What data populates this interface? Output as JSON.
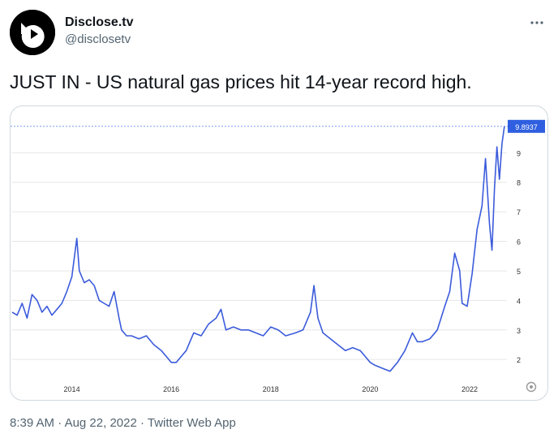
{
  "author": {
    "display_name": "Disclose.tv",
    "handle": "@disclosetv"
  },
  "more_icon": "more-horizontal-icon",
  "tweet": {
    "text": "JUST IN - US natural gas prices hit 14-year record high."
  },
  "meta": {
    "time": "8:39 AM",
    "separator": "·",
    "date": "Aug 22, 2022",
    "source": "Twitter Web App"
  },
  "colors": {
    "line": "#3b5bdb",
    "last_label_bg": "#2f5fe0",
    "grid": "#e6e6e6",
    "dashed": "#7a9cf0"
  },
  "chart_data": {
    "type": "line",
    "last_value_label": "9.8937",
    "x_ticks": [
      "2014",
      "2016",
      "2018",
      "2020",
      "2022"
    ],
    "y_ticks": [
      "2",
      "3",
      "4",
      "5",
      "6",
      "7",
      "8",
      "9"
    ],
    "ylim": [
      1.4,
      10.3
    ],
    "xlim": [
      2012.8,
      2022.75
    ],
    "grid": true,
    "x": [
      2012.8,
      2012.9,
      2013.0,
      2013.1,
      2013.2,
      2013.3,
      2013.4,
      2013.5,
      2013.6,
      2013.7,
      2013.8,
      2013.9,
      2014.0,
      2014.1,
      2014.15,
      2014.25,
      2014.35,
      2014.45,
      2014.55,
      2014.65,
      2014.75,
      2014.85,
      2014.95,
      2015.0,
      2015.1,
      2015.2,
      2015.35,
      2015.5,
      2015.65,
      2015.8,
      2015.9,
      2016.0,
      2016.1,
      2016.2,
      2016.3,
      2016.45,
      2016.6,
      2016.75,
      2016.9,
      2017.0,
      2017.1,
      2017.25,
      2017.4,
      2017.55,
      2017.7,
      2017.85,
      2018.0,
      2018.15,
      2018.3,
      2018.5,
      2018.65,
      2018.8,
      2018.87,
      2018.95,
      2019.05,
      2019.2,
      2019.35,
      2019.5,
      2019.65,
      2019.8,
      2019.9,
      2020.0,
      2020.1,
      2020.25,
      2020.4,
      2020.55,
      2020.7,
      2020.85,
      2020.95,
      2021.05,
      2021.2,
      2021.35,
      2021.5,
      2021.6,
      2021.7,
      2021.8,
      2021.85,
      2021.95,
      2022.05,
      2022.15,
      2022.25,
      2022.32,
      2022.4,
      2022.45,
      2022.5,
      2022.55,
      2022.6,
      2022.65,
      2022.7
    ],
    "y": [
      3.6,
      3.5,
      3.9,
      3.4,
      4.2,
      4.0,
      3.6,
      3.8,
      3.5,
      3.7,
      3.9,
      4.3,
      4.8,
      6.1,
      5.0,
      4.6,
      4.7,
      4.5,
      4.0,
      3.9,
      3.8,
      4.3,
      3.4,
      3.0,
      2.8,
      2.8,
      2.7,
      2.8,
      2.5,
      2.3,
      2.1,
      1.9,
      1.9,
      2.1,
      2.3,
      2.9,
      2.8,
      3.2,
      3.4,
      3.7,
      3.0,
      3.1,
      3.0,
      3.0,
      2.9,
      2.8,
      3.1,
      3.0,
      2.8,
      2.9,
      3.0,
      3.6,
      4.5,
      3.4,
      2.9,
      2.7,
      2.5,
      2.3,
      2.4,
      2.3,
      2.1,
      1.9,
      1.8,
      1.7,
      1.6,
      1.9,
      2.3,
      2.9,
      2.6,
      2.6,
      2.7,
      3.0,
      3.8,
      4.3,
      5.6,
      5.0,
      3.9,
      3.8,
      4.9,
      6.4,
      7.2,
      8.8,
      6.6,
      5.7,
      7.8,
      9.2,
      8.1,
      9.3,
      9.8937
    ]
  }
}
